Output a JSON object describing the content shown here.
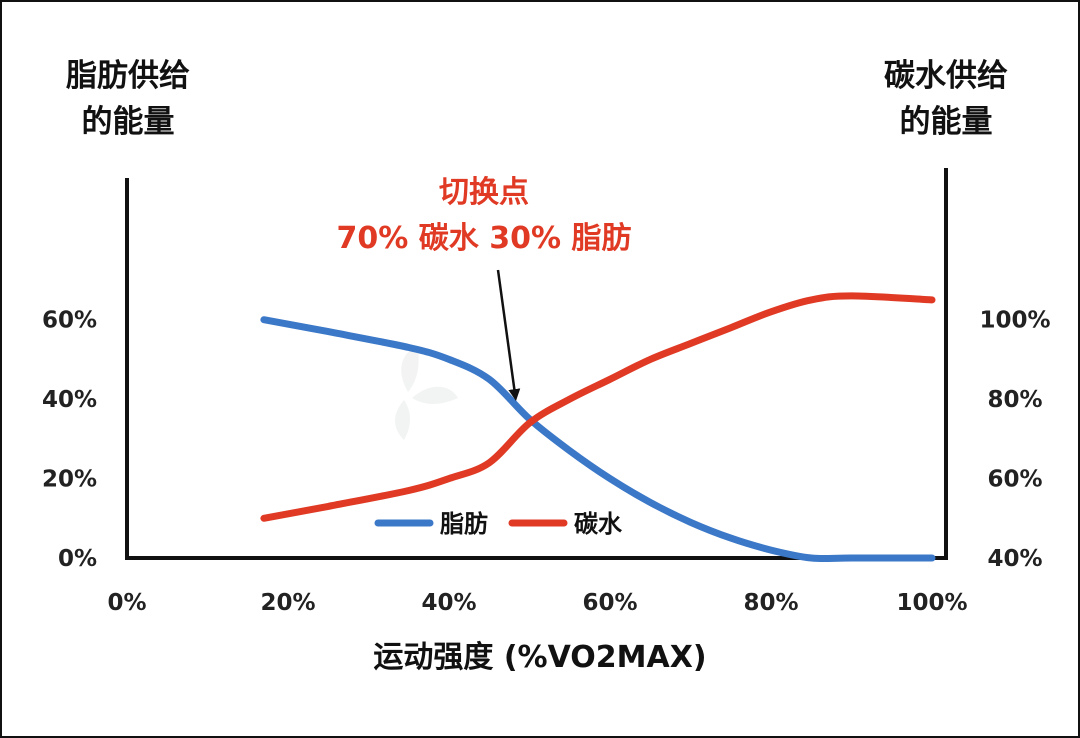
{
  "chart_data": {
    "type": "line",
    "xlabel": "运动强度 (%VO2MAX)",
    "ylabel_left": [
      "脂肪供给",
      "的能量"
    ],
    "ylabel_right": [
      "碳水供给",
      "的能量"
    ],
    "x_ticks": [
      "0%",
      "20%",
      "40%",
      "60%",
      "80%",
      "100%"
    ],
    "xlim": [
      0,
      100
    ],
    "y_left_ticks": [
      "0%",
      "20%",
      "40%",
      "60%"
    ],
    "y_left_lim": [
      0,
      70
    ],
    "y_right_ticks": [
      "40%",
      "60%",
      "80%",
      "100%"
    ],
    "y_right_lim": [
      40,
      110
    ],
    "series": [
      {
        "name": "脂肪",
        "axis": "left",
        "color": "#3b78c8",
        "x": [
          17,
          25,
          35,
          40,
          45,
          50,
          55,
          60,
          65,
          70,
          75,
          80,
          85,
          90,
          100
        ],
        "y": [
          60,
          57,
          53,
          50,
          45,
          35,
          27,
          20,
          14,
          9,
          5,
          2,
          0,
          0,
          0
        ]
      },
      {
        "name": "碳水",
        "axis": "right",
        "color": "#e03a25",
        "x": [
          17,
          25,
          35,
          40,
          45,
          50,
          55,
          60,
          65,
          70,
          75,
          80,
          85,
          90,
          100
        ],
        "y": [
          50,
          53,
          57,
          60,
          64,
          74,
          80,
          85,
          90,
          94,
          98,
          102,
          105,
          106,
          105
        ]
      }
    ],
    "annotation": {
      "lines": [
        "切换点",
        "70% 碳水 30% 脂肪"
      ],
      "target": {
        "x": 48.5,
        "y_left": 38
      }
    },
    "legend": {
      "position": "bottom-center",
      "items": [
        "脂肪",
        "碳水"
      ]
    },
    "grid": false
  }
}
